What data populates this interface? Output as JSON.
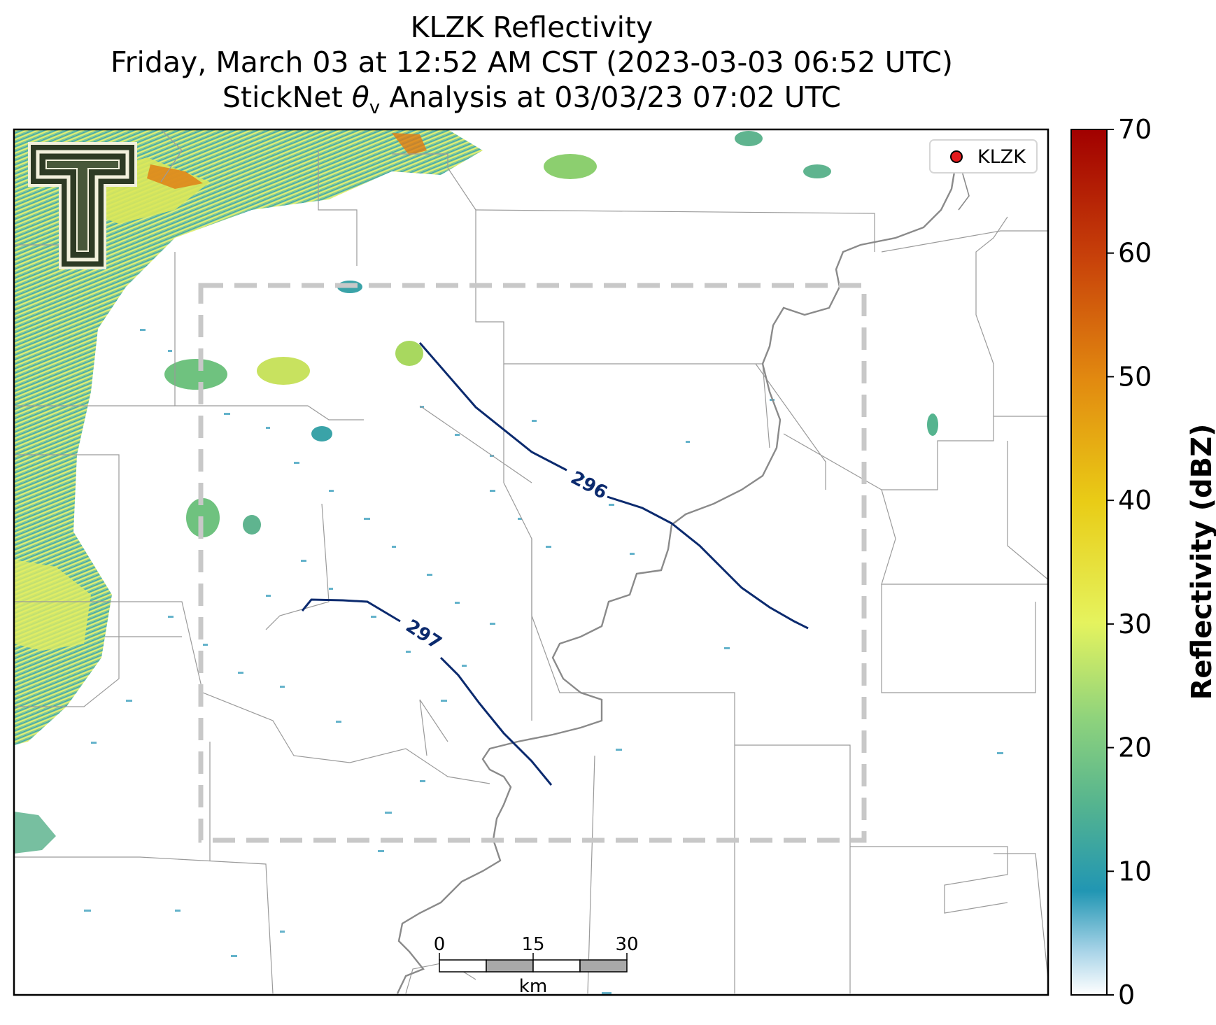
{
  "title": {
    "line1": "KLZK Reflectivity",
    "line2": "Friday, March 03 at 12:52 AM CST (2023-03-03 06:52 UTC)",
    "line3_prefix": "StickNet ",
    "line3_symbol": "θ",
    "line3_sub": "v",
    "line3_suffix": " Analysis at 03/03/23 07:02 UTC"
  },
  "legend": {
    "marker_color": "#e41a1c",
    "label": "KLZK"
  },
  "colorbar": {
    "label": "Reflectivity (dBZ)",
    "min": 0,
    "max": 70,
    "ticks": [
      "0",
      "10",
      "20",
      "30",
      "40",
      "50",
      "60",
      "70"
    ],
    "colors": [
      "#ffffff",
      "#a9d4e8",
      "#2196b3",
      "#55b48f",
      "#8fd37c",
      "#e5f35e",
      "#e9cc16",
      "#e28a10",
      "#c8420a",
      "#a10000"
    ]
  },
  "contours": [
    {
      "label": "296"
    },
    {
      "label": "297"
    }
  ],
  "scale_bar": {
    "ticks": [
      "0",
      "15",
      "30"
    ],
    "unit": "km"
  },
  "logo": {
    "icon": "texas-tech-double-t-logo"
  },
  "colors": {
    "contour": "#0b2a6e",
    "river": "#8a8a8a",
    "county_line": "#9a9a9a",
    "domain_box": "#c8c8c8"
  }
}
